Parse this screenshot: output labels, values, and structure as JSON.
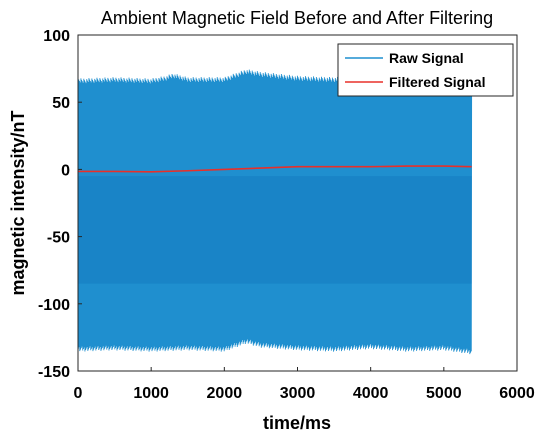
{
  "chart_data": {
    "type": "line",
    "title": "Ambient Magnetic Field Before and After Filtering",
    "xlabel": "time/ms",
    "ylabel": "magnetic intensity/nT",
    "xlim": [
      0,
      6000
    ],
    "ylim": [
      -150,
      100
    ],
    "xticks": [
      0,
      1000,
      2000,
      3000,
      4000,
      5000,
      6000
    ],
    "yticks": [
      -150,
      -100,
      -50,
      0,
      50,
      100
    ],
    "grid": false,
    "legend_position": "top-right",
    "series": [
      {
        "name": "Raw Signal",
        "color": "#1f8fcf",
        "style": "dense-oscillation",
        "x_range": [
          0,
          5380
        ],
        "upper_envelope": {
          "x": [
            0,
            500,
            1000,
            1200,
            1300,
            1500,
            2000,
            2300,
            2500,
            3000,
            3500,
            4000,
            4500,
            5000,
            5380
          ],
          "y": [
            66,
            67,
            66,
            68,
            70,
            67,
            67,
            73,
            71,
            68,
            67,
            69,
            63,
            66,
            65
          ]
        },
        "lower_envelope": {
          "x": [
            0,
            500,
            1000,
            1500,
            2000,
            2200,
            2300,
            2500,
            3000,
            3500,
            4000,
            4500,
            5000,
            5380
          ],
          "y": [
            -134,
            -133,
            -134,
            -133,
            -134,
            -130,
            -128,
            -131,
            -133,
            -134,
            -132,
            -134,
            -133,
            -136
          ]
        }
      },
      {
        "name": "Filtered Signal",
        "color": "#e8302a",
        "x": [
          0,
          500,
          1000,
          1500,
          2000,
          2500,
          3000,
          3500,
          4000,
          4500,
          5000,
          5380
        ],
        "y": [
          -1.5,
          -1.5,
          -1.8,
          -1.0,
          0,
          1.0,
          2.0,
          2.0,
          2.0,
          2.5,
          2.5,
          2.0
        ]
      }
    ]
  }
}
